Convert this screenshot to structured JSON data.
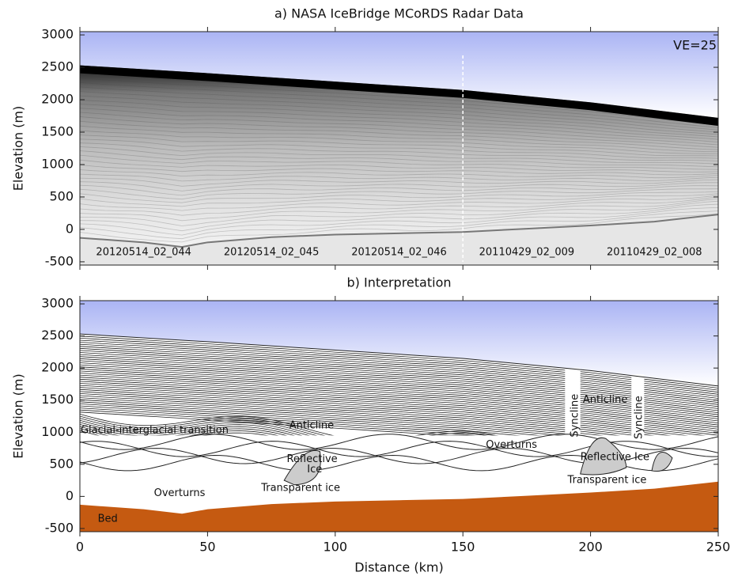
{
  "chart_data": [
    {
      "type": "radargram",
      "title": "a) NASA IceBridge MCoRDS Radar Data",
      "ylabel": "Elevation (m)",
      "annotation": "VE=25",
      "segment_labels": [
        "20120514_02_044",
        "20120514_02_045",
        "20120514_02_046",
        "20110429_02_009",
        "20110429_02_008"
      ],
      "xlim": [
        0,
        250
      ],
      "xticks": [
        0,
        50,
        100,
        150,
        200,
        250
      ],
      "ylim": [
        -550,
        3050
      ],
      "yticks": [
        -500,
        0,
        500,
        1000,
        1500,
        2000,
        2500,
        3000
      ],
      "surface": {
        "x": [
          0,
          50,
          100,
          150,
          200,
          250
        ],
        "values": [
          2530,
          2410,
          2280,
          2150,
          1960,
          1720
        ]
      },
      "bed": {
        "x": [
          0,
          25,
          40,
          50,
          75,
          100,
          125,
          150,
          175,
          200,
          225,
          250
        ],
        "values": [
          -130,
          -200,
          -270,
          -200,
          -120,
          -80,
          -60,
          -40,
          10,
          60,
          120,
          230
        ]
      }
    },
    {
      "type": "interpretation",
      "title": "b) Interpretation",
      "xlabel": "Distance (km)",
      "ylabel": "Elevation (m)",
      "xlim": [
        0,
        250
      ],
      "xticks": [
        0,
        50,
        100,
        150,
        200,
        250
      ],
      "ylim": [
        -550,
        3050
      ],
      "yticks": [
        -500,
        0,
        500,
        1000,
        1500,
        2000,
        2500,
        3000
      ],
      "surface": {
        "x": [
          0,
          50,
          100,
          150,
          200,
          250
        ],
        "values": [
          2530,
          2410,
          2280,
          2150,
          1960,
          1720
        ]
      },
      "bed": {
        "name": "Bed",
        "color": "#c55a11",
        "x": [
          0,
          25,
          40,
          50,
          75,
          100,
          125,
          150,
          175,
          200,
          225,
          250
        ],
        "values": [
          -130,
          -200,
          -270,
          -200,
          -120,
          -80,
          -60,
          -40,
          10,
          60,
          120,
          230
        ]
      },
      "annotations": [
        "Glacial-interglacial transition",
        "Anticline",
        "Reflective",
        "Ice",
        "Overturns",
        "Transparent ice",
        "Overturns",
        "Syncline",
        "Anticline",
        "Syncline",
        "Reflective Ice",
        "Transparent ice"
      ]
    }
  ]
}
